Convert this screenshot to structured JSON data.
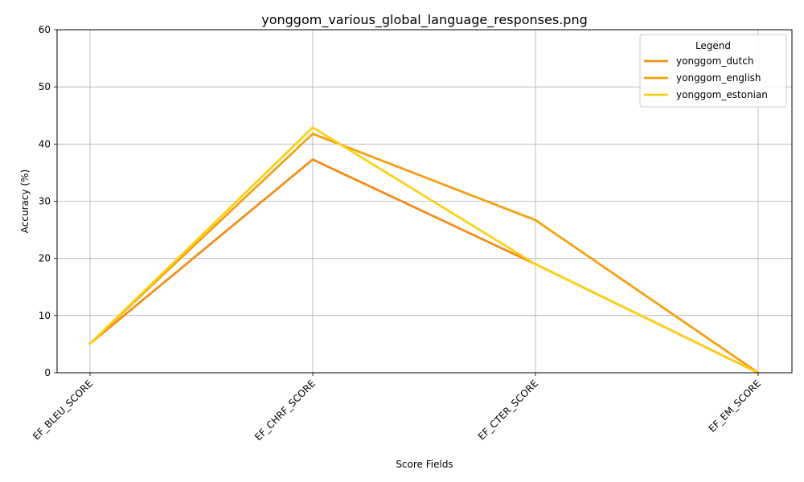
{
  "chart_data": {
    "type": "line",
    "title": "yonggom_various_global_language_responses.png",
    "xlabel": "Score Fields",
    "ylabel": "Accuracy (%)",
    "categories": [
      "EF_BLEU_SCORE",
      "EF_CHRF_SCORE",
      "EF_CTER_SCORE",
      "EF_EM_SCORE"
    ],
    "ylim": [
      0,
      60
    ],
    "yticks": [
      0,
      10,
      20,
      30,
      40,
      50,
      60
    ],
    "grid": true,
    "legend": {
      "title": "Legend",
      "placement": "top-right"
    },
    "series": [
      {
        "name": "yonggom_dutch",
        "color": "#f28e1c",
        "values": [
          5.1,
          37.3,
          19.0,
          0.0
        ]
      },
      {
        "name": "yonggom_english",
        "color": "#f5a00f",
        "values": [
          5.1,
          41.8,
          26.7,
          0.0
        ]
      },
      {
        "name": "yonggom_estonian",
        "color": "#f9d01a",
        "values": [
          5.1,
          42.9,
          19.0,
          0.0
        ]
      }
    ]
  }
}
